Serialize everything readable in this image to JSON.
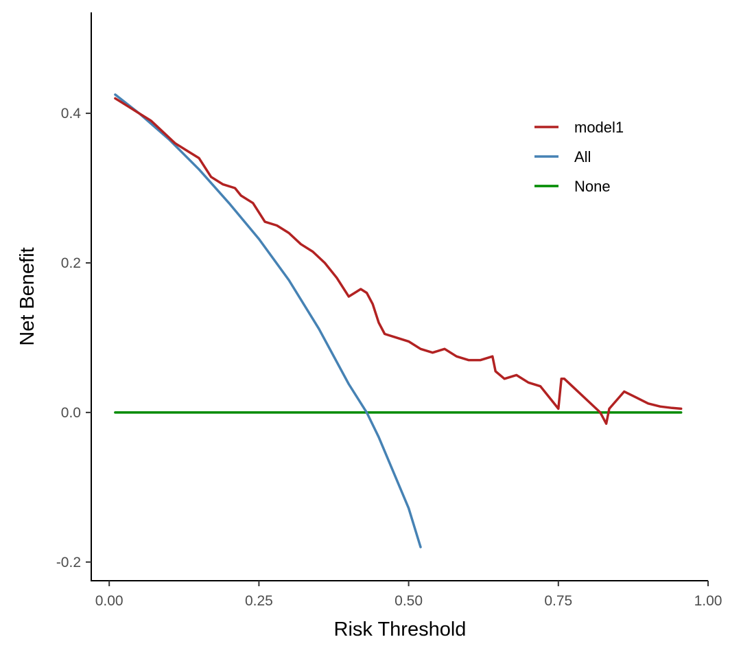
{
  "chart_data": {
    "type": "line",
    "title": "",
    "xlabel": "Risk Threshold",
    "ylabel": "Net Benefit",
    "xlim": [
      -0.03,
      1.0
    ],
    "ylim": [
      -0.225,
      0.535
    ],
    "xticks": [
      0.0,
      0.25,
      0.5,
      0.75,
      1.0
    ],
    "xtick_labels": [
      "0.00",
      "0.25",
      "0.50",
      "0.75",
      "1.00"
    ],
    "yticks": [
      -0.2,
      0.0,
      0.2,
      0.4
    ],
    "ytick_labels": [
      "-0.2",
      "0.0",
      "0.2",
      "0.4"
    ],
    "grid": false,
    "legend_position": "top-right",
    "series": [
      {
        "name": "model1",
        "color": "#B22222",
        "x": [
          0.01,
          0.03,
          0.05,
          0.07,
          0.09,
          0.11,
          0.13,
          0.15,
          0.17,
          0.19,
          0.21,
          0.22,
          0.24,
          0.26,
          0.28,
          0.3,
          0.32,
          0.34,
          0.36,
          0.38,
          0.4,
          0.41,
          0.42,
          0.43,
          0.44,
          0.45,
          0.46,
          0.48,
          0.5,
          0.52,
          0.54,
          0.56,
          0.58,
          0.6,
          0.62,
          0.64,
          0.645,
          0.66,
          0.68,
          0.7,
          0.72,
          0.74,
          0.75,
          0.755,
          0.76,
          0.78,
          0.8,
          0.82,
          0.83,
          0.835,
          0.86,
          0.88,
          0.9,
          0.92,
          0.94,
          0.955
        ],
        "y": [
          0.42,
          0.41,
          0.4,
          0.39,
          0.375,
          0.36,
          0.35,
          0.34,
          0.315,
          0.305,
          0.3,
          0.29,
          0.28,
          0.255,
          0.25,
          0.24,
          0.225,
          0.215,
          0.2,
          0.18,
          0.155,
          0.16,
          0.165,
          0.16,
          0.145,
          0.12,
          0.105,
          0.1,
          0.095,
          0.085,
          0.08,
          0.085,
          0.075,
          0.07,
          0.07,
          0.075,
          0.055,
          0.045,
          0.05,
          0.04,
          0.035,
          0.015,
          0.005,
          0.045,
          0.045,
          0.03,
          0.015,
          0.0,
          -0.015,
          0.005,
          0.028,
          0.02,
          0.012,
          0.008,
          0.006,
          0.005
        ]
      },
      {
        "name": "All",
        "color": "#4682B4",
        "x": [
          0.01,
          0.05,
          0.1,
          0.15,
          0.2,
          0.25,
          0.3,
          0.35,
          0.4,
          0.43,
          0.45,
          0.5,
          0.52
        ],
        "y": [
          0.425,
          0.4,
          0.365,
          0.325,
          0.28,
          0.232,
          0.177,
          0.112,
          0.038,
          0.0,
          -0.033,
          -0.128,
          -0.18
        ]
      },
      {
        "name": "None",
        "color": "#008B00",
        "x": [
          0.01,
          0.955
        ],
        "y": [
          0.0,
          0.0
        ]
      }
    ]
  }
}
